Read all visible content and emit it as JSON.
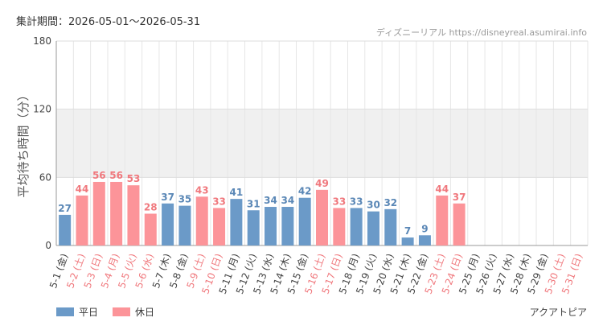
{
  "header": {
    "period_label": "集計期間：2026-05-01～2026-05-31",
    "source": "ディズニーリアル https://disneyreal.asumirai.info"
  },
  "footer": {
    "park": "アクアトピア"
  },
  "colors": {
    "weekday": "#6b9ac8",
    "holiday": "#fc9499",
    "holiday_text": "#f0787d",
    "weekday_text": "#5a87b6",
    "band": "#f0f0f0"
  },
  "chart_data": {
    "type": "bar",
    "ylabel": "平均待ち時間（分）",
    "ylim": [
      0,
      180
    ],
    "yticks": [
      0,
      60,
      120,
      180
    ],
    "bands": [
      [
        60,
        120
      ]
    ],
    "grid": true,
    "legend": {
      "position": "bottom-left",
      "entries": [
        {
          "name": "平日",
          "key": "weekday"
        },
        {
          "name": "休日",
          "key": "holiday"
        }
      ]
    },
    "categories": [
      "5-1 (金)",
      "5-2 (土)",
      "5-3 (日)",
      "5-4 (月)",
      "5-5 (火)",
      "5-6 (水)",
      "5-7 (木)",
      "5-8 (金)",
      "5-9 (土)",
      "5-10 (日)",
      "5-11 (月)",
      "5-12 (火)",
      "5-13 (水)",
      "5-14 (木)",
      "5-15 (金)",
      "5-16 (土)",
      "5-17 (日)",
      "5-18 (月)",
      "5-19 (火)",
      "5-20 (水)",
      "5-21 (木)",
      "5-22 (金)",
      "5-23 (土)",
      "5-24 (日)",
      "5-25 (月)",
      "5-26 (火)",
      "5-27 (水)",
      "5-28 (木)",
      "5-29 (金)",
      "5-30 (土)",
      "5-31 (日)"
    ],
    "day_types": [
      "weekday",
      "holiday",
      "holiday",
      "holiday",
      "holiday",
      "holiday",
      "weekday",
      "weekday",
      "holiday",
      "holiday",
      "weekday",
      "weekday",
      "weekday",
      "weekday",
      "weekday",
      "holiday",
      "holiday",
      "weekday",
      "weekday",
      "weekday",
      "weekday",
      "weekday",
      "holiday",
      "holiday",
      "weekday",
      "weekday",
      "weekday",
      "weekday",
      "weekday",
      "holiday",
      "holiday"
    ],
    "values": [
      27,
      44,
      56,
      56,
      53,
      28,
      37,
      35,
      43,
      33,
      41,
      31,
      34,
      34,
      42,
      49,
      33,
      33,
      30,
      32,
      7,
      9,
      44,
      37,
      null,
      null,
      null,
      null,
      null,
      null,
      null
    ]
  }
}
